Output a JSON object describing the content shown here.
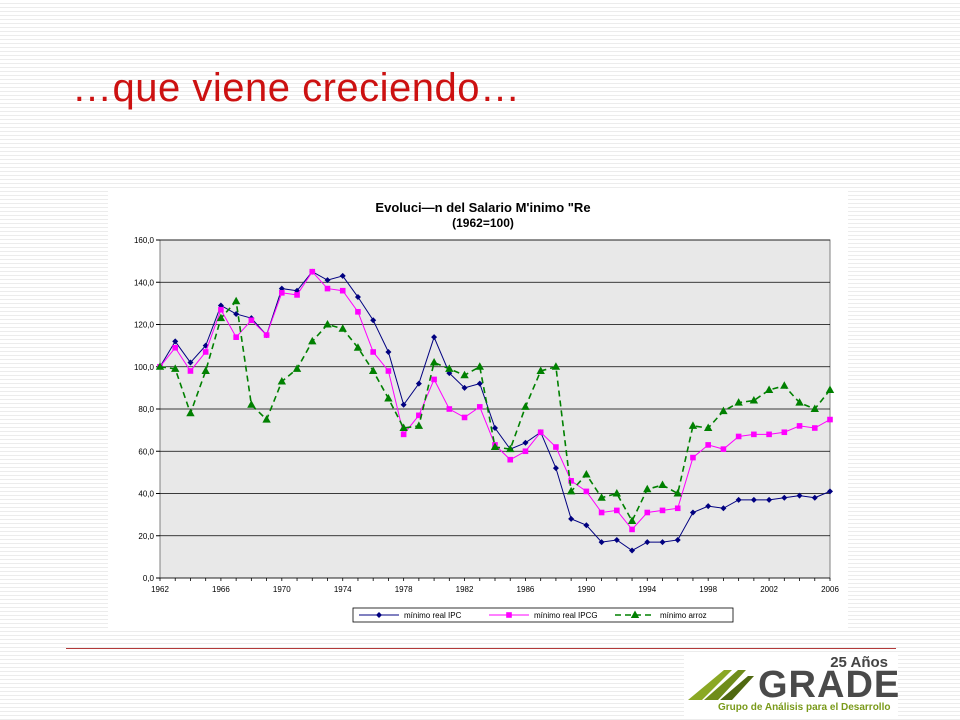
{
  "slide": {
    "title": "…que viene creciendo…"
  },
  "colors": {
    "title": "#cc1111",
    "ipc": "#000080",
    "ipcg": "#ff00ff",
    "arroz": "#008000",
    "plot_bg": "#e8e8e8"
  },
  "chart_data": {
    "type": "line",
    "title": "Evoluci—n del Salario M'inimo \"Re",
    "subtitle": "(1962=100)",
    "xlabel": "",
    "ylabel": "",
    "ylim": [
      0,
      160
    ],
    "yticks": [
      "0,0",
      "20,0",
      "40,0",
      "60,0",
      "80,0",
      "100,0",
      "120,0",
      "140,0",
      "160,0"
    ],
    "xticks": [
      "1962",
      "1966",
      "1970",
      "1974",
      "1978",
      "1982",
      "1986",
      "1990",
      "1994",
      "1998",
      "2002",
      "2006"
    ],
    "grid": true,
    "legend_position": "bottom",
    "x": [
      1962,
      1963,
      1964,
      1965,
      1966,
      1967,
      1968,
      1969,
      1970,
      1971,
      1972,
      1973,
      1974,
      1975,
      1976,
      1977,
      1978,
      1979,
      1980,
      1981,
      1982,
      1983,
      1984,
      1985,
      1986,
      1987,
      1988,
      1989,
      1990,
      1991,
      1992,
      1993,
      1994,
      1995,
      1996,
      1997,
      1998,
      1999,
      2000,
      2001,
      2002,
      2003,
      2004,
      2005,
      2006
    ],
    "series": [
      {
        "name": "mínimo real IPC",
        "values": [
          100,
          112,
          102,
          110,
          129,
          125,
          123,
          115,
          137,
          136,
          145,
          141,
          143,
          133,
          122,
          107,
          82,
          92,
          114,
          97,
          90,
          92,
          71,
          61,
          64,
          69,
          52,
          28,
          25,
          17,
          18,
          13,
          17,
          17,
          18,
          31,
          34,
          33,
          37,
          37,
          37,
          38,
          39,
          38,
          41
        ]
      },
      {
        "name": "mínimo real IPCG",
        "values": [
          100,
          109,
          98,
          107,
          127,
          114,
          122,
          115,
          135,
          134,
          145,
          137,
          136,
          126,
          107,
          98,
          68,
          77,
          94,
          80,
          76,
          81,
          63,
          56,
          60,
          69,
          62,
          46,
          41,
          31,
          32,
          23,
          31,
          32,
          33,
          57,
          63,
          61,
          67,
          68,
          68,
          69,
          72,
          71,
          75
        ]
      },
      {
        "name": "mínimo arroz",
        "values": [
          100,
          99,
          78,
          98,
          123,
          131,
          82,
          75,
          93,
          99,
          112,
          120,
          118,
          109,
          98,
          85,
          71,
          72,
          102,
          99,
          96,
          100,
          62,
          61,
          81,
          98,
          100,
          41,
          49,
          38,
          40,
          27,
          42,
          44,
          40,
          72,
          71,
          79,
          83,
          84,
          89,
          91,
          83,
          80,
          89
        ]
      }
    ]
  },
  "logo": {
    "anniversary": "25 Años",
    "name": "GRADE",
    "tagline": "Grupo de Análisis para el Desarrollo"
  }
}
